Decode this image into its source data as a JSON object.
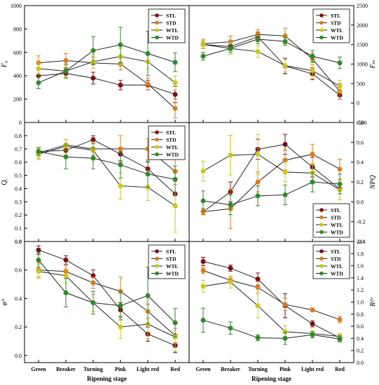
{
  "categories": [
    "Green",
    "Breaker",
    "Turning",
    "Pink",
    "Light red",
    "Red"
  ],
  "xlabel": "Ripening stage",
  "series_styles": [
    {
      "name": "STL",
      "color": "#7b0f14"
    },
    {
      "name": "STD",
      "color": "#e07a1e"
    },
    {
      "name": "WTL",
      "color": "#c9c81a"
    },
    {
      "name": "WTD",
      "color": "#2f8a2a"
    }
  ],
  "chart_data": [
    {
      "type": "line",
      "ylabel": "F₀",
      "ylim": [
        0,
        1000
      ],
      "yticks": [
        0,
        200,
        400,
        600,
        800,
        1000
      ],
      "axis": "left",
      "legend": "top-right",
      "categories": [
        "Green",
        "Breaker",
        "Turning",
        "Pink",
        "Light red",
        "Red"
      ],
      "series": [
        {
          "name": "STL",
          "values": [
            400,
            420,
            380,
            320,
            320,
            240
          ],
          "errors": [
            60,
            40,
            50,
            40,
            40,
            70
          ]
        },
        {
          "name": "STD",
          "values": [
            510,
            530,
            510,
            500,
            330,
            120
          ],
          "errors": [
            60,
            60,
            50,
            50,
            50,
            80
          ]
        },
        {
          "name": "WTL",
          "values": [
            460,
            440,
            520,
            565,
            520,
            340
          ],
          "errors": [
            50,
            50,
            60,
            70,
            60,
            60
          ]
        },
        {
          "name": "WTD",
          "values": [
            340,
            440,
            615,
            665,
            590,
            515
          ],
          "errors": [
            50,
            60,
            120,
            150,
            190,
            80
          ]
        }
      ]
    },
    {
      "type": "line",
      "ylabel": "Fₘ",
      "ylim": [
        -500,
        2500
      ],
      "yticks": [
        -500,
        0,
        500,
        1000,
        1500,
        2000,
        2500
      ],
      "axis": "right",
      "legend": "top-right",
      "categories": [
        "Green",
        "Breaker",
        "Turning",
        "Pink",
        "Light red",
        "Red"
      ],
      "series": [
        {
          "name": "STL",
          "values": [
            1500,
            1450,
            1700,
            950,
            750,
            200
          ],
          "errors": [
            100,
            100,
            120,
            200,
            150,
            100
          ]
        },
        {
          "name": "STD",
          "values": [
            1520,
            1570,
            1760,
            1720,
            1130,
            300
          ],
          "errors": [
            120,
            150,
            120,
            200,
            150,
            200
          ]
        },
        {
          "name": "WTL",
          "values": [
            1500,
            1400,
            1320,
            960,
            830,
            430
          ],
          "errors": [
            100,
            150,
            150,
            150,
            200,
            150
          ]
        },
        {
          "name": "WTD",
          "values": [
            1200,
            1400,
            1640,
            1580,
            1200,
            1030
          ],
          "errors": [
            100,
            100,
            120,
            100,
            150,
            150
          ]
        }
      ]
    },
    {
      "type": "line",
      "ylabel": "Qᵧ",
      "ylim": [
        0.0,
        0.9
      ],
      "yticks": [
        0.0,
        0.1,
        0.2,
        0.3,
        0.4,
        0.5,
        0.6,
        0.7,
        0.8
      ],
      "axis": "left",
      "legend": "top-right",
      "categories": [
        "Green",
        "Breaker",
        "Turning",
        "Pink",
        "Light red",
        "Red"
      ],
      "series": [
        {
          "name": "STL",
          "values": [
            0.68,
            0.69,
            0.77,
            0.66,
            0.55,
            0.36
          ],
          "errors": [
            0.03,
            0.04,
            0.03,
            0.05,
            0.05,
            0.1
          ]
        },
        {
          "name": "STD",
          "values": [
            0.67,
            0.73,
            0.7,
            0.7,
            0.7,
            0.53
          ],
          "errors": [
            0.04,
            0.04,
            0.05,
            0.1,
            0.08,
            0.1
          ]
        },
        {
          "name": "WTL",
          "values": [
            0.66,
            0.72,
            0.69,
            0.42,
            0.41,
            0.27
          ],
          "errors": [
            0.04,
            0.05,
            0.06,
            0.1,
            0.1,
            0.2
          ]
        },
        {
          "name": "WTD",
          "values": [
            0.68,
            0.64,
            0.63,
            0.58,
            0.51,
            0.47
          ],
          "errors": [
            0.03,
            0.09,
            0.08,
            0.1,
            0.1,
            0.1
          ]
        }
      ]
    },
    {
      "type": "line",
      "ylabel": "NPQ",
      "ylim": [
        -0.4,
        0.8
      ],
      "yticks": [
        -0.4,
        -0.2,
        0.0,
        0.2,
        0.4,
        0.6,
        0.8
      ],
      "axis": "right",
      "legend": "bottom-right",
      "categories": [
        "Green",
        "Breaker",
        "Turning",
        "Pink",
        "Light red",
        "Red"
      ],
      "series": [
        {
          "name": "STL",
          "values": [
            -0.1,
            0.1,
            0.53,
            0.58,
            0.35,
            0.13
          ],
          "errors": [
            0.03,
            0.1,
            0.1,
            0.1,
            0.1,
            0.05
          ]
        },
        {
          "name": "STD",
          "values": [
            -0.1,
            -0.07,
            0.2,
            0.42,
            0.48,
            0.33
          ],
          "errors": [
            0.03,
            0.2,
            0.1,
            0.1,
            0.1,
            0.1
          ]
        },
        {
          "name": "WTL",
          "values": [
            0.31,
            0.47,
            0.48,
            0.3,
            0.29,
            0.12
          ],
          "errors": [
            0.1,
            0.2,
            0.2,
            0.1,
            0.1,
            0.1
          ]
        },
        {
          "name": "WTD",
          "values": [
            0.01,
            -0.03,
            0.06,
            0.07,
            0.2,
            0.18
          ],
          "errors": [
            0.1,
            0.1,
            0.1,
            0.1,
            0.1,
            0.1
          ]
        }
      ]
    },
    {
      "type": "line",
      "ylabel": "φᴺ",
      "ylim": [
        -0.05,
        0.8
      ],
      "yticks": [
        0.0,
        0.2,
        0.4,
        0.6,
        0.8
      ],
      "axis": "left",
      "legend": "top-right",
      "categories": [
        "Green",
        "Breaker",
        "Turning",
        "Pink",
        "Light red",
        "Red"
      ],
      "series": [
        {
          "name": "STL",
          "values": [
            0.74,
            0.67,
            0.56,
            0.32,
            0.15,
            0.07
          ],
          "errors": [
            0.03,
            0.03,
            0.04,
            0.05,
            0.05,
            0.05
          ]
        },
        {
          "name": "STD",
          "values": [
            0.6,
            0.59,
            0.51,
            0.45,
            0.31,
            0.14
          ],
          "errors": [
            0.05,
            0.04,
            0.04,
            0.1,
            0.05,
            0.05
          ]
        },
        {
          "name": "WTL",
          "values": [
            0.59,
            0.56,
            0.37,
            0.2,
            0.22,
            0.13
          ],
          "errors": [
            0.05,
            0.05,
            0.06,
            0.08,
            0.1,
            0.1
          ]
        },
        {
          "name": "WTD",
          "values": [
            0.67,
            0.44,
            0.37,
            0.35,
            0.42,
            0.23
          ],
          "errors": [
            0.05,
            0.1,
            0.08,
            0.1,
            0.2,
            0.1
          ]
        }
      ]
    },
    {
      "type": "line",
      "ylabel": "Rᶠᴰ",
      "ylim": [
        0.0,
        2.0
      ],
      "yticks": [
        0.0,
        0.2,
        0.4,
        0.6,
        0.8,
        1.0,
        1.2,
        1.4,
        1.6,
        1.8,
        2.0
      ],
      "axis": "right",
      "legend": "top-right",
      "categories": [
        "Green",
        "Breaker",
        "Turning",
        "Pink",
        "Light red",
        "Red"
      ],
      "series": [
        {
          "name": "STL",
          "values": [
            1.67,
            1.56,
            1.38,
            0.94,
            0.64,
            0.41
          ],
          "errors": [
            0.07,
            0.05,
            0.1,
            0.2,
            0.05,
            0.05
          ]
        },
        {
          "name": "STD",
          "values": [
            1.52,
            1.36,
            1.24,
            0.96,
            0.87,
            0.71
          ],
          "errors": [
            0.05,
            0.05,
            0.1,
            0.1,
            0.03,
            0.05
          ]
        },
        {
          "name": "WTL",
          "values": [
            1.26,
            1.33,
            0.94,
            0.51,
            0.48,
            0.43
          ],
          "errors": [
            0.1,
            0.1,
            0.2,
            0.1,
            0.05,
            0.05
          ]
        },
        {
          "name": "WTD",
          "values": [
            0.7,
            0.57,
            0.41,
            0.4,
            0.46,
            0.39
          ],
          "errors": [
            0.2,
            0.1,
            0.05,
            0.1,
            0.05,
            0.05
          ]
        }
      ]
    }
  ]
}
